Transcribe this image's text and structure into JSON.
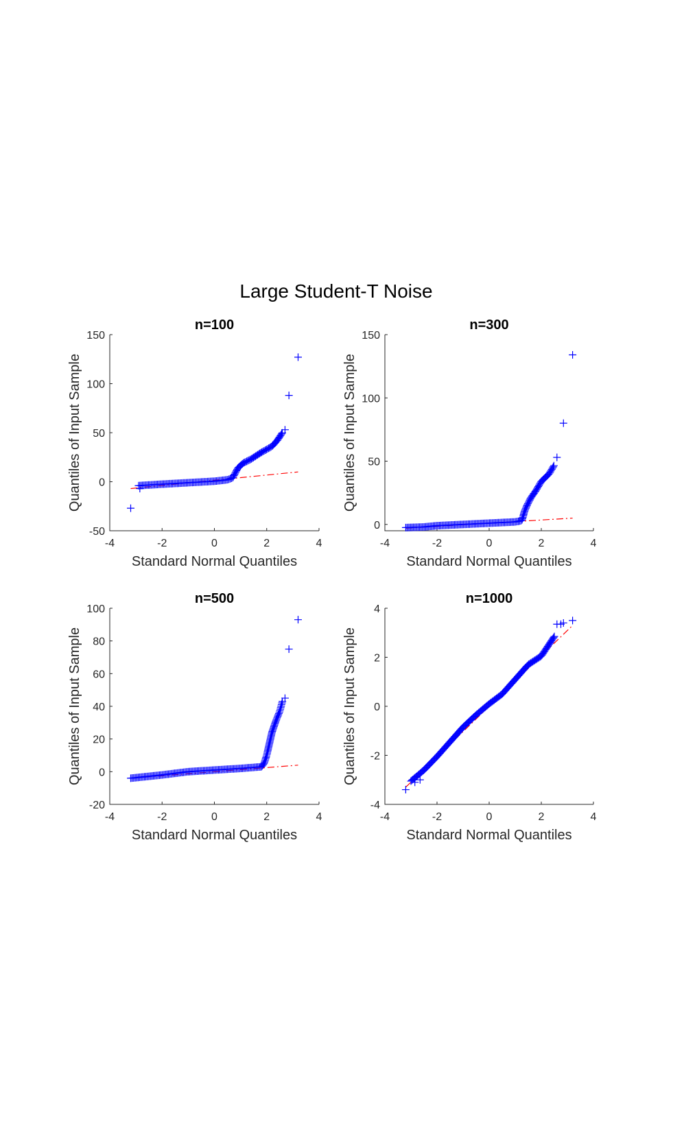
{
  "figure_title": "Large Student-T Noise",
  "colors": {
    "markers": "#0000ff",
    "reference_line": "#ff0000",
    "axes": "#262626"
  },
  "chart_data": [
    {
      "type": "scatter",
      "title": "n=100",
      "xlabel": "Standard Normal Quantiles",
      "ylabel": "Quantiles of Input Sample",
      "xlim": [
        -4,
        4
      ],
      "ylim": [
        -50,
        150
      ],
      "xticks": [
        -4,
        -2,
        0,
        2,
        4
      ],
      "yticks": [
        -50,
        0,
        50,
        100,
        150
      ],
      "marker": "+",
      "reference_line": {
        "style": "dash-dot",
        "x": [
          -3.2,
          3.2
        ],
        "y": [
          -7,
          10
        ]
      },
      "shape": [
        [
          -2.9,
          -4
        ],
        [
          -2.0,
          -2.5
        ],
        [
          -1.0,
          -1
        ],
        [
          0,
          0.5
        ],
        [
          0.5,
          2
        ],
        [
          0.7,
          4
        ],
        [
          0.8,
          9
        ],
        [
          0.9,
          14
        ],
        [
          1.1,
          19
        ],
        [
          1.4,
          23
        ],
        [
          1.8,
          30
        ],
        [
          2.2,
          36
        ],
        [
          2.4,
          42
        ],
        [
          2.6,
          50
        ]
      ],
      "points": [
        [
          -3.2,
          -27
        ],
        [
          -2.85,
          -7
        ],
        [
          2.7,
          53
        ],
        [
          2.85,
          88
        ],
        [
          3.2,
          127
        ]
      ]
    },
    {
      "type": "scatter",
      "title": "n=300",
      "xlabel": "Standard Normal Quantiles",
      "ylabel": "Quantiles of Input Sample",
      "xlim": [
        -4,
        4
      ],
      "ylim": [
        -5,
        150
      ],
      "xticks": [
        -4,
        -2,
        0,
        2,
        4
      ],
      "yticks": [
        0,
        50,
        100,
        150
      ],
      "marker": "+",
      "reference_line": {
        "style": "dash-dot",
        "x": [
          -3.2,
          3.2
        ],
        "y": [
          -3,
          5
        ]
      },
      "shape": [
        [
          -3.2,
          -2.5
        ],
        [
          -2.5,
          -2
        ],
        [
          -2.0,
          -1
        ],
        [
          -1.0,
          0
        ],
        [
          0,
          1
        ],
        [
          1.0,
          2
        ],
        [
          1.25,
          3
        ],
        [
          1.3,
          6
        ],
        [
          1.35,
          10
        ],
        [
          1.45,
          15
        ],
        [
          1.6,
          21
        ],
        [
          1.8,
          27
        ],
        [
          2.0,
          34
        ],
        [
          2.3,
          40
        ],
        [
          2.5,
          47
        ]
      ],
      "points": [
        [
          2.6,
          53
        ],
        [
          2.85,
          80
        ],
        [
          3.2,
          134
        ]
      ]
    },
    {
      "type": "scatter",
      "title": "n=500",
      "xlabel": "Standard Normal Quantiles",
      "ylabel": "Quantiles of Input Sample",
      "xlim": [
        -4,
        4
      ],
      "ylim": [
        -20,
        100
      ],
      "xticks": [
        -4,
        -2,
        0,
        2,
        4
      ],
      "yticks": [
        -20,
        0,
        20,
        40,
        60,
        80,
        100
      ],
      "marker": "+",
      "reference_line": {
        "style": "dash-dot",
        "x": [
          -3.2,
          3.2
        ],
        "y": [
          -4,
          4
        ]
      },
      "shape": [
        [
          -3.2,
          -4
        ],
        [
          -2.6,
          -3
        ],
        [
          -2.0,
          -2
        ],
        [
          -1.0,
          0
        ],
        [
          0,
          1
        ],
        [
          1.0,
          2
        ],
        [
          1.8,
          3
        ],
        [
          1.9,
          5
        ],
        [
          2.0,
          10
        ],
        [
          2.1,
          17
        ],
        [
          2.2,
          24
        ],
        [
          2.35,
          31
        ],
        [
          2.5,
          37
        ],
        [
          2.6,
          43
        ]
      ],
      "points": [
        [
          2.7,
          45
        ],
        [
          2.85,
          75
        ],
        [
          3.2,
          93
        ]
      ]
    },
    {
      "type": "scatter",
      "title": "n=1000",
      "xlabel": "Standard Normal Quantiles",
      "ylabel": "Quantiles of Input Sample",
      "xlim": [
        -4,
        4
      ],
      "ylim": [
        -4,
        4
      ],
      "xticks": [
        -4,
        -2,
        0,
        2,
        4
      ],
      "yticks": [
        -4,
        -2,
        0,
        2,
        4
      ],
      "marker": "+",
      "reference_line": {
        "style": "dash-dot",
        "x": [
          -3.2,
          3.2
        ],
        "y": [
          -3.3,
          3.3
        ]
      },
      "shape": [
        [
          -3.0,
          -3.05
        ],
        [
          -2.5,
          -2.6
        ],
        [
          -2.0,
          -2.05
        ],
        [
          -1.5,
          -1.45
        ],
        [
          -1.0,
          -0.85
        ],
        [
          -0.5,
          -0.35
        ],
        [
          0,
          0.1
        ],
        [
          0.5,
          0.5
        ],
        [
          1.0,
          1.1
        ],
        [
          1.5,
          1.7
        ],
        [
          2.0,
          2.05
        ],
        [
          2.5,
          2.85
        ]
      ],
      "points": [
        [
          -3.2,
          -3.4
        ],
        [
          -2.85,
          -3.1
        ],
        [
          -2.65,
          -3.0
        ],
        [
          2.6,
          3.35
        ],
        [
          2.75,
          3.35
        ],
        [
          2.85,
          3.4
        ],
        [
          3.2,
          3.5
        ]
      ]
    }
  ]
}
